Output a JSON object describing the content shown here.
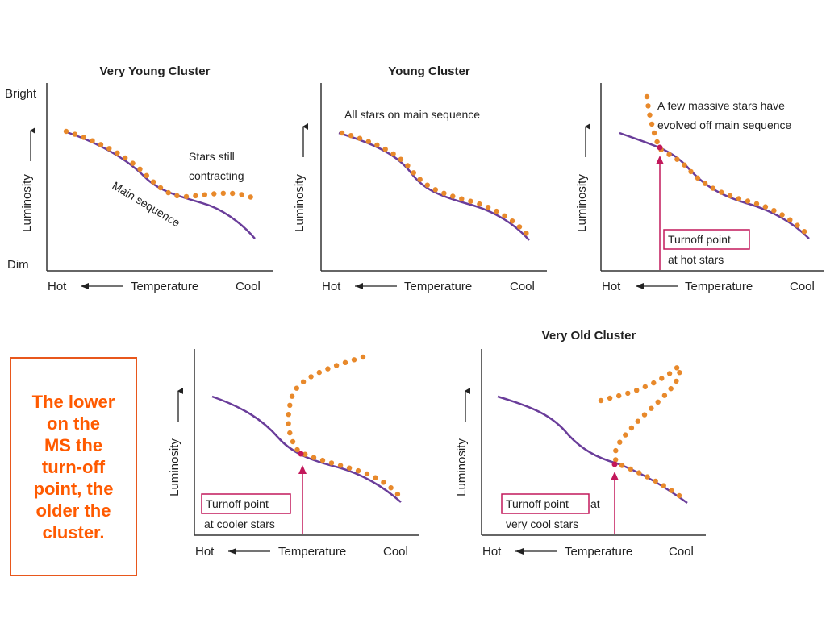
{
  "panels": [
    {
      "key": "very-young",
      "title": "Very Young Cluster",
      "ylabel": "Luminosity",
      "y_top_label": "Bright",
      "y_bottom_label": "Dim",
      "x_left": "Hot",
      "x_center": "Temperature",
      "x_right": "Cool",
      "annotations": [
        "Stars still",
        "contracting"
      ],
      "curve_label": "Main sequence"
    },
    {
      "key": "young",
      "title": "Young Cluster",
      "ylabel": "Luminosity",
      "x_left": "Hot",
      "x_center": "Temperature",
      "x_right": "Cool",
      "annotations": [
        "All stars on main sequence"
      ]
    },
    {
      "key": "older",
      "title": "",
      "ylabel": "Luminosity",
      "x_left": "Hot",
      "x_center": "Temperature",
      "x_right": "Cool",
      "annotations": [
        "A few massive stars have",
        "evolved off main sequence"
      ],
      "turnoff_box": "Turnoff point",
      "turnoff_sub": "at hot stars"
    },
    {
      "key": "old",
      "title": "",
      "ylabel": "Luminosity",
      "x_left": "Hot",
      "x_center": "Temperature",
      "x_right": "Cool",
      "turnoff_box": "Turnoff point",
      "turnoff_sub": "at cooler stars"
    },
    {
      "key": "very-old",
      "title": "Very Old Cluster",
      "ylabel": "Luminosity",
      "x_left": "Hot",
      "x_center": "Temperature",
      "x_right": "Cool",
      "turnoff_box": "Turnoff point",
      "turnoff_box_tail": "at",
      "turnoff_sub": "very cool stars"
    }
  ],
  "callout": {
    "lines": [
      "The lower",
      "on the",
      "MS the",
      "turn-off",
      "point, the",
      "older the",
      "cluster."
    ]
  },
  "colors": {
    "main_sequence": "#6a3d9a",
    "stars": "#e8892b",
    "turnoff": "#c2185b",
    "callout": "#ff5a00"
  }
}
